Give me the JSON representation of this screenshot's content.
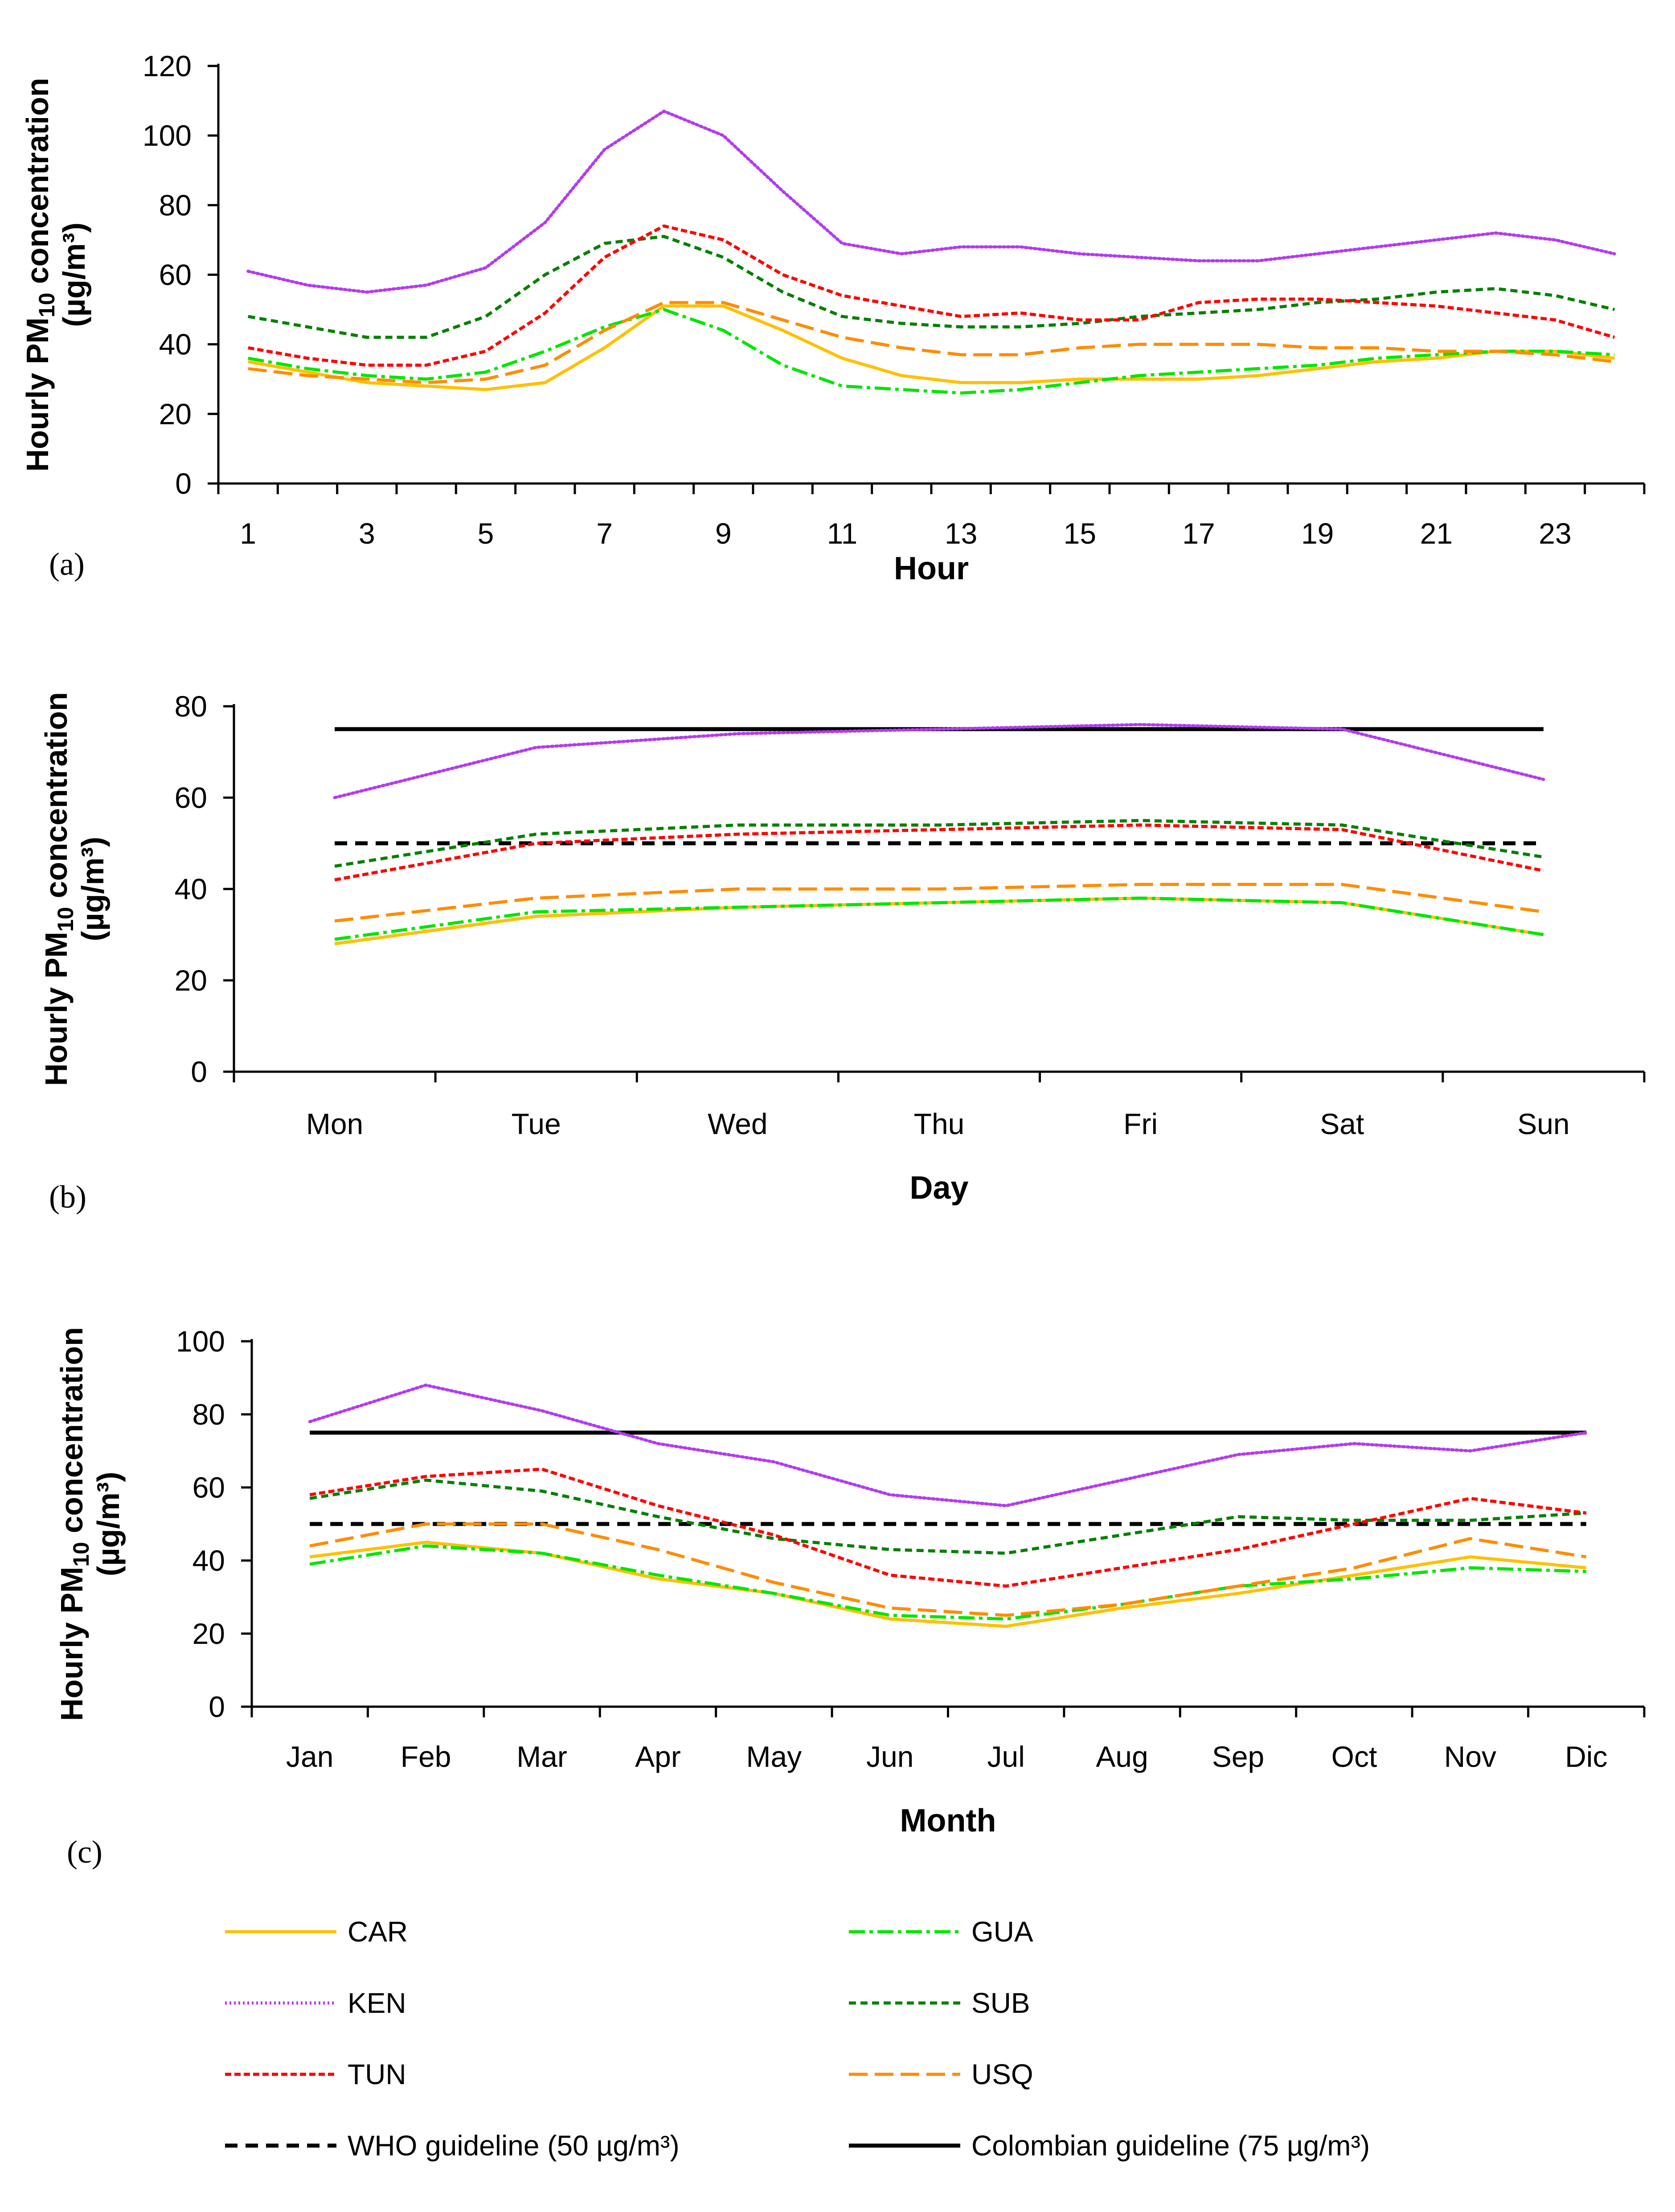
{
  "chart_data": [
    {
      "type": "line",
      "panel_label": "(a)",
      "xlabel": "Hour",
      "ylabel": {
        "prefix": "Hourly PM",
        "sub": "10",
        "suffix": " concentration",
        "unit": "(µg/m³)"
      },
      "x": [
        1,
        2,
        3,
        4,
        5,
        6,
        7,
        8,
        9,
        10,
        11,
        12,
        13,
        14,
        15,
        16,
        17,
        18,
        19,
        20,
        21,
        22,
        23,
        24
      ],
      "x_tick_labels": [
        "1",
        "3",
        "5",
        "7",
        "9",
        "11",
        "13",
        "15",
        "17",
        "19",
        "21",
        "23"
      ],
      "x_tick_values": [
        1,
        3,
        5,
        7,
        9,
        11,
        13,
        15,
        17,
        19,
        21,
        23
      ],
      "yticks": [
        0,
        20,
        40,
        60,
        80,
        100,
        120
      ],
      "ylim": [
        0,
        120
      ],
      "series": [
        {
          "name": "CAR",
          "values": [
            35,
            32,
            29,
            28,
            27,
            29,
            39,
            51,
            51,
            44,
            36,
            31,
            29,
            29,
            30,
            30,
            30,
            31,
            33,
            35,
            36,
            38,
            38,
            36
          ]
        },
        {
          "name": "GUA",
          "values": [
            36,
            33,
            31,
            30,
            32,
            38,
            45,
            50,
            44,
            34,
            28,
            27,
            26,
            27,
            29,
            31,
            32,
            33,
            34,
            36,
            37,
            38,
            38,
            37
          ]
        },
        {
          "name": "KEN",
          "values": [
            61,
            57,
            55,
            57,
            62,
            75,
            96,
            107,
            100,
            84,
            69,
            66,
            68,
            68,
            66,
            65,
            64,
            64,
            66,
            68,
            70,
            72,
            70,
            66
          ]
        },
        {
          "name": "SUB",
          "values": [
            48,
            45,
            42,
            42,
            48,
            60,
            69,
            71,
            65,
            55,
            48,
            46,
            45,
            45,
            46,
            48,
            49,
            50,
            52,
            53,
            55,
            56,
            54,
            50
          ]
        },
        {
          "name": "TUN",
          "values": [
            39,
            36,
            34,
            34,
            38,
            49,
            65,
            74,
            70,
            60,
            54,
            51,
            48,
            49,
            47,
            47,
            52,
            53,
            53,
            52,
            51,
            49,
            47,
            42
          ]
        },
        {
          "name": "USQ",
          "values": [
            33,
            31,
            30,
            29,
            30,
            34,
            44,
            52,
            52,
            47,
            42,
            39,
            37,
            37,
            39,
            40,
            40,
            40,
            39,
            39,
            38,
            38,
            37,
            35
          ]
        }
      ],
      "reference_lines": []
    },
    {
      "type": "line",
      "panel_label": "(b)",
      "xlabel": "Day",
      "ylabel": {
        "prefix": "Hourly PM",
        "sub": "10",
        "suffix": " concentration",
        "unit": "(µg/m³)"
      },
      "categories": [
        "Mon",
        "Tue",
        "Wed",
        "Thu",
        "Fri",
        "Sat",
        "Sun"
      ],
      "yticks": [
        0,
        20,
        40,
        60,
        80
      ],
      "ylim": [
        0,
        80
      ],
      "series": [
        {
          "name": "CAR",
          "values": [
            28,
            34,
            36,
            37,
            38,
            37,
            30
          ]
        },
        {
          "name": "GUA",
          "values": [
            29,
            35,
            36,
            37,
            38,
            37,
            30
          ]
        },
        {
          "name": "KEN",
          "values": [
            60,
            71,
            74,
            75,
            76,
            75,
            64
          ]
        },
        {
          "name": "SUB",
          "values": [
            45,
            52,
            54,
            54,
            55,
            54,
            47
          ]
        },
        {
          "name": "TUN",
          "values": [
            42,
            50,
            52,
            53,
            54,
            53,
            44
          ]
        },
        {
          "name": "USQ",
          "values": [
            33,
            38,
            40,
            40,
            41,
            41,
            35
          ]
        }
      ],
      "reference_lines": [
        {
          "name": "WHO guideline (50 µg/m³)",
          "value": 50
        },
        {
          "name": "Colombian guideline (75 µg/m³)",
          "value": 75
        }
      ]
    },
    {
      "type": "line",
      "panel_label": "(c)",
      "xlabel": "Month",
      "ylabel": {
        "prefix": "Hourly PM",
        "sub": "10",
        "suffix": " concentration",
        "unit": "(µg/m³)"
      },
      "categories": [
        "Jan",
        "Feb",
        "Mar",
        "Apr",
        "May",
        "Jun",
        "Jul",
        "Aug",
        "Sep",
        "Oct",
        "Nov",
        "Dic"
      ],
      "yticks": [
        0,
        20,
        40,
        60,
        80,
        100
      ],
      "ylim": [
        0,
        100
      ],
      "series": [
        {
          "name": "CAR",
          "values": [
            41,
            45,
            42,
            35,
            31,
            24,
            22,
            27,
            31,
            36,
            41,
            38
          ]
        },
        {
          "name": "GUA",
          "values": [
            39,
            44,
            42,
            36,
            31,
            25,
            24,
            28,
            33,
            35,
            38,
            37
          ]
        },
        {
          "name": "KEN",
          "values": [
            78,
            88,
            81,
            72,
            67,
            58,
            55,
            62,
            69,
            72,
            70,
            75
          ]
        },
        {
          "name": "SUB",
          "values": [
            57,
            62,
            59,
            52,
            46,
            43,
            42,
            47,
            52,
            51,
            51,
            53
          ]
        },
        {
          "name": "TUN",
          "values": [
            58,
            63,
            65,
            55,
            47,
            36,
            33,
            38,
            43,
            50,
            57,
            53
          ]
        },
        {
          "name": "USQ",
          "values": [
            44,
            50,
            50,
            43,
            34,
            27,
            25,
            28,
            33,
            38,
            46,
            41
          ]
        }
      ],
      "reference_lines": [
        {
          "name": "WHO guideline (50 µg/m³)",
          "value": 50
        },
        {
          "name": "Colombian guideline (75 µg/m³)",
          "value": 75
        }
      ]
    }
  ],
  "legend": [
    {
      "name": "CAR",
      "label": "CAR"
    },
    {
      "name": "GUA",
      "label": "GUA"
    },
    {
      "name": "KEN",
      "label": "KEN"
    },
    {
      "name": "SUB",
      "label": "SUB"
    },
    {
      "name": "TUN",
      "label": "TUN"
    },
    {
      "name": "USQ",
      "label": "USQ"
    },
    {
      "name": "WHO",
      "label": "WHO guideline (50 µg/m³)"
    },
    {
      "name": "COL",
      "label": "Colombian guideline (75 µg/m³)"
    }
  ],
  "styles": {
    "CAR": {
      "color": "#FFC000",
      "dash": ""
    },
    "GUA": {
      "color": "#00E600",
      "dash": "36 10 8 10"
    },
    "KEN": {
      "color": "#B23BF0",
      "dash": "4 6"
    },
    "SUB": {
      "color": "#008000",
      "dash": "16 10"
    },
    "TUN": {
      "color": "#FF0000",
      "dash": "14 7"
    },
    "USQ": {
      "color": "#FF8C00",
      "dash": "42 16"
    },
    "WHO": {
      "color": "#000000",
      "dash": "28 18"
    },
    "COL": {
      "color": "#000000",
      "dash": ""
    }
  }
}
